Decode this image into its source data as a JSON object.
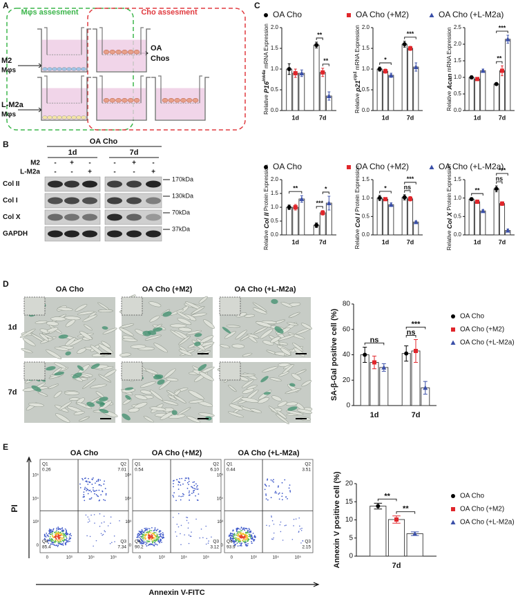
{
  "panel_labels": [
    "A",
    "B",
    "C",
    "D",
    "E"
  ],
  "diagram": {
    "left_box": "Mφs assesment",
    "right_box": "Cho assesment",
    "top_cells": [
      "M2",
      "Mφs"
    ],
    "chondrocytes": [
      "OA",
      "Chos"
    ],
    "bottom_cells": [
      "L-M2a",
      "Mφs"
    ]
  },
  "western": {
    "group": "OA Cho",
    "timepoints": [
      "1d",
      "7d"
    ],
    "treatments": [
      {
        "label": "M2",
        "signs": [
          "-",
          "+",
          "-",
          "-",
          "+",
          "-"
        ]
      },
      {
        "label": "L-M2a",
        "signs": [
          "-",
          "-",
          "+",
          "-",
          "-",
          "+"
        ]
      }
    ],
    "bands": [
      {
        "label": "Col II",
        "size": "170kDa"
      },
      {
        "label": "Col I",
        "size": "130kDa"
      },
      {
        "label": "Col X",
        "size": "70kDa"
      },
      {
        "label": "GAPDH",
        "size": "37kDa"
      }
    ]
  },
  "micrographs": {
    "columns": [
      "OA Cho",
      "OA Cho (+M2)",
      "OA Cho (+L-M2a)"
    ],
    "rows": [
      "1d",
      "7d"
    ]
  },
  "flow": {
    "y_label": "PI",
    "x_label": "Annexin V-FITC",
    "ticks": [
      "0",
      "10³",
      "10⁴",
      "10⁵"
    ],
    "plots": [
      {
        "title": "OA Cho",
        "quadrants": [
          {
            "name": "Q1",
            "value": "0.26"
          },
          {
            "name": "Q2",
            "value": "7.01"
          },
          {
            "name": "Q3",
            "value": "7.34"
          },
          {
            "name": "Q4",
            "value": "85.4"
          }
        ]
      },
      {
        "title": "OA Cho (+M2)",
        "quadrants": [
          {
            "name": "Q1",
            "value": "0.54"
          },
          {
            "name": "Q2",
            "value": "6.10"
          },
          {
            "name": "Q3",
            "value": "3.12"
          },
          {
            "name": "Q4",
            "value": "90.2"
          }
        ]
      },
      {
        "title": "OA Cho (+L-M2a)",
        "quadrants": [
          {
            "name": "Q1",
            "value": "0.44"
          },
          {
            "name": "Q2",
            "value": "3.51"
          },
          {
            "name": "Q3",
            "value": "2.15"
          },
          {
            "name": "Q4",
            "value": "93.9"
          }
        ]
      }
    ]
  },
  "chart_data": [
    {
      "type": "bar",
      "legend": "top",
      "ylabel_parts": [
        "Relative ",
        "P16",
        "ink4a",
        " mRNA Expression"
      ],
      "ylabel_styles": [
        "plain",
        "gene",
        "sup",
        "plain"
      ],
      "categories": [
        "1d",
        "7d"
      ],
      "ylim": [
        0,
        2
      ],
      "yticks": [
        {
          "value": 0,
          "label": "0.0"
        },
        {
          "value": 0.5,
          "label": "0.5"
        },
        {
          "value": 1,
          "label": "1.0"
        },
        {
          "value": 1.5,
          "label": "1.5"
        },
        {
          "value": 2,
          "label": "2.0"
        }
      ],
      "series": [
        {
          "name": "OA Cho",
          "color": "#000000",
          "marker": "circle",
          "values": [
            1.0,
            1.58
          ],
          "errors": [
            0.13,
            0.07
          ]
        },
        {
          "name": "OA Cho (+M2)",
          "color": "#e0262b",
          "marker": "square",
          "values": [
            0.9,
            0.92
          ],
          "errors": [
            0.1,
            0.1
          ]
        },
        {
          "name": "OA Cho (+L-M2a)",
          "color": "#3a4fa8",
          "marker": "triangle",
          "values": [
            0.9,
            0.35
          ],
          "errors": [
            0.08,
            0.1
          ]
        }
      ],
      "significance": [
        {
          "category": 1,
          "from": 0,
          "to": 1,
          "label": "**"
        },
        {
          "category": 1,
          "from": 1,
          "to": 2,
          "label": "**"
        }
      ]
    },
    {
      "type": "bar",
      "ylabel_parts": [
        "Relative ",
        "p21",
        "cip1",
        " mRNA Expression"
      ],
      "ylabel_styles": [
        "plain",
        "gene",
        "sup",
        "plain"
      ],
      "categories": [
        "1d",
        "7d"
      ],
      "ylim": [
        0,
        2
      ],
      "yticks": [
        {
          "value": 0,
          "label": "0.0"
        },
        {
          "value": 0.5,
          "label": "0.5"
        },
        {
          "value": 1,
          "label": "1.0"
        },
        {
          "value": 1.5,
          "label": "1.5"
        },
        {
          "value": 2,
          "label": "2.0"
        }
      ],
      "series": [
        {
          "color": "#000000",
          "values": [
            1.0,
            1.6
          ],
          "errors": [
            0.05,
            0.07
          ]
        },
        {
          "color": "#e0262b",
          "values": [
            0.95,
            1.5
          ],
          "errors": [
            0.05,
            0.05
          ]
        },
        {
          "color": "#3a4fa8",
          "values": [
            0.85,
            1.05
          ],
          "errors": [
            0.05,
            0.1
          ]
        }
      ],
      "significance": [
        {
          "category": 0,
          "from": 0,
          "to": 2,
          "label": "*"
        },
        {
          "category": 1,
          "from": 0,
          "to": 2,
          "label": "***"
        }
      ]
    },
    {
      "type": "bar",
      "ylabel_parts": [
        "Relative ",
        "Acan",
        " mRNA Expression"
      ],
      "ylabel_styles": [
        "plain",
        "gene",
        "plain"
      ],
      "categories": [
        "1d",
        "7d"
      ],
      "ylim": [
        0,
        2.5
      ],
      "yticks": [
        {
          "value": 0,
          "label": "0.0"
        },
        {
          "value": 0.5,
          "label": "0.5"
        },
        {
          "value": 1,
          "label": "1.0"
        },
        {
          "value": 1.5,
          "label": "1.5"
        },
        {
          "value": 2,
          "label": "2.0"
        },
        {
          "value": 2.5,
          "label": "2.5"
        }
      ],
      "series": [
        {
          "color": "#000000",
          "values": [
            1.0,
            0.8
          ],
          "errors": [
            0.05,
            0.03
          ]
        },
        {
          "color": "#e0262b",
          "values": [
            0.95,
            1.2
          ],
          "errors": [
            0.05,
            0.15
          ]
        },
        {
          "color": "#3a4fa8",
          "values": [
            1.2,
            2.15
          ],
          "errors": [
            0.05,
            0.12
          ]
        }
      ],
      "significance": [
        {
          "category": 1,
          "from": 0,
          "to": 1,
          "label": "**"
        },
        {
          "category": 1,
          "from": 0,
          "to": 2,
          "label": "***"
        }
      ]
    },
    {
      "type": "bar",
      "legend": "top",
      "ylabel_parts": [
        "Relative ",
        "Col II",
        " Protein Expression"
      ],
      "ylabel_styles": [
        "plain",
        "gene",
        "plain"
      ],
      "categories": [
        "1d",
        "7d"
      ],
      "ylim": [
        0,
        2
      ],
      "yticks": [
        {
          "value": 0,
          "label": "0.0"
        },
        {
          "value": 0.5,
          "label": "0.5"
        },
        {
          "value": 1,
          "label": "1.0"
        },
        {
          "value": 1.5,
          "label": "1.5"
        },
        {
          "value": 2,
          "label": "2.0"
        }
      ],
      "series": [
        {
          "name": "OA Cho",
          "color": "#000000",
          "marker": "circle",
          "values": [
            1.0,
            0.35
          ],
          "errors": [
            0.08,
            0.08
          ]
        },
        {
          "name": "OA Cho (+M2)",
          "color": "#e0262b",
          "marker": "square",
          "values": [
            1.0,
            0.8
          ],
          "errors": [
            0.1,
            0.08
          ]
        },
        {
          "name": "OA Cho (+L-M2a)",
          "color": "#3a4fa8",
          "marker": "triangle",
          "values": [
            1.3,
            1.15
          ],
          "errors": [
            0.12,
            0.25
          ]
        }
      ],
      "significance": [
        {
          "category": 0,
          "from": 0,
          "to": 2,
          "label": "**"
        },
        {
          "category": 1,
          "from": 0,
          "to": 1,
          "label": "***"
        },
        {
          "category": 1,
          "from": 1,
          "to": 2,
          "label": "*"
        }
      ]
    },
    {
      "type": "bar",
      "ylabel_parts": [
        "Relative ",
        "Col I",
        " Protein Expression"
      ],
      "ylabel_styles": [
        "plain",
        "gene",
        "plain"
      ],
      "categories": [
        "1d",
        "7d"
      ],
      "ylim": [
        0,
        1.5
      ],
      "yticks": [
        {
          "value": 0,
          "label": "0.0"
        },
        {
          "value": 0.5,
          "label": "0.5"
        },
        {
          "value": 1,
          "label": "1.0"
        },
        {
          "value": 1.5,
          "label": "1.5"
        }
      ],
      "series": [
        {
          "color": "#000000",
          "values": [
            1.0,
            1.02
          ],
          "errors": [
            0.07,
            0.07
          ]
        },
        {
          "color": "#e0262b",
          "values": [
            0.97,
            0.98
          ],
          "errors": [
            0.03,
            0.06
          ]
        },
        {
          "color": "#3a4fa8",
          "values": [
            0.82,
            0.35
          ],
          "errors": [
            0.05,
            0.03
          ]
        }
      ],
      "significance": [
        {
          "category": 0,
          "from": 0,
          "to": 2,
          "label": "*"
        },
        {
          "category": 1,
          "from": 0,
          "to": 1,
          "label": "ns"
        },
        {
          "category": 1,
          "from": 0,
          "to": 2,
          "label": "***"
        }
      ]
    },
    {
      "type": "bar",
      "ylabel_parts": [
        "Relative ",
        "Col X",
        " Protein Expression"
      ],
      "ylabel_styles": [
        "plain",
        "gene",
        "plain"
      ],
      "categories": [
        "1d",
        "7d"
      ],
      "ylim": [
        0,
        1.5
      ],
      "yticks": [
        {
          "value": 0,
          "label": "0.0"
        },
        {
          "value": 0.5,
          "label": "0.5"
        },
        {
          "value": 1,
          "label": "1.0"
        },
        {
          "value": 1.5,
          "label": "1.5"
        }
      ],
      "series": [
        {
          "color": "#000000",
          "values": [
            0.97,
            1.25
          ],
          "errors": [
            0.04,
            0.08
          ]
        },
        {
          "color": "#e0262b",
          "values": [
            0.9,
            0.85
          ],
          "errors": [
            0.05,
            0.05
          ]
        },
        {
          "color": "#3a4fa8",
          "values": [
            0.65,
            0.12
          ],
          "errors": [
            0.04,
            0.04
          ]
        }
      ],
      "significance": [
        {
          "category": 0,
          "from": 0,
          "to": 2,
          "label": "**"
        },
        {
          "category": 1,
          "from": 0,
          "to": 1,
          "label": "ns"
        },
        {
          "category": 1,
          "from": 0,
          "to": 2,
          "label": "***"
        }
      ]
    },
    {
      "type": "bar",
      "legend": "right",
      "ylabel": "SA-β-Gal positive cell (%)",
      "categories": [
        "1d",
        "7d"
      ],
      "ylim": [
        0,
        80
      ],
      "yticks": [
        0,
        20,
        40,
        60,
        80
      ],
      "series": [
        {
          "name": "OA Cho",
          "color": "#000000",
          "marker": "circle",
          "values": [
            40,
            41
          ],
          "errors": [
            6,
            6
          ]
        },
        {
          "name": "OA Cho (+M2)",
          "color": "#e0262b",
          "marker": "square",
          "values": [
            34,
            43
          ],
          "errors": [
            5,
            9
          ]
        },
        {
          "name": "OA Cho (+L-M2a)",
          "color": "#3a4fa8",
          "marker": "triangle",
          "values": [
            30,
            14
          ],
          "errors": [
            3,
            5
          ]
        }
      ],
      "significance": [
        {
          "category": 0,
          "from": 0,
          "to": 2,
          "label": "ns"
        },
        {
          "category": 1,
          "from": 0,
          "to": 1,
          "label": "ns"
        },
        {
          "category": 1,
          "from": 0,
          "to": 2,
          "label": "***"
        }
      ]
    },
    {
      "type": "bar",
      "legend": "right",
      "ylabel": "Annexin V positive cell (%)",
      "categories": [
        "7d"
      ],
      "ylim": [
        0,
        20
      ],
      "yticks": [
        0,
        5,
        10,
        15,
        20
      ],
      "series": [
        {
          "name": "OA Cho",
          "color": "#000000",
          "marker": "circle",
          "values": [
            13.8
          ],
          "errors": [
            0.8
          ]
        },
        {
          "name": "OA Cho (+M2)",
          "color": "#e0262b",
          "marker": "square",
          "values": [
            10.1
          ],
          "errors": [
            1
          ]
        },
        {
          "name": "OA Cho (+L-M2a)",
          "color": "#3a4fa8",
          "marker": "triangle",
          "values": [
            6.2
          ],
          "errors": [
            0.5
          ]
        }
      ],
      "significance": [
        {
          "category": 0,
          "from": 0,
          "to": 1,
          "label": "**"
        },
        {
          "category": 0,
          "from": 1,
          "to": 2,
          "label": "**"
        }
      ]
    }
  ]
}
